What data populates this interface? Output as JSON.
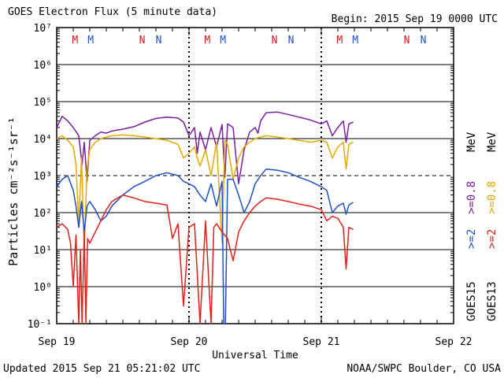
{
  "header": {
    "title": "GOES Electron Flux (5 minute data)",
    "begin": "Begin: 2015 Sep 19 0000 UTC"
  },
  "footer": {
    "updated": "Updated 2015 Sep 21 05:21:02 UTC",
    "source": "NOAA/SWPC Boulder, CO USA"
  },
  "colors": {
    "goes15_gt08": "#7a1fa2",
    "goes15_gt2": "#1f4fc8",
    "goes13_gt08": "#e6a800",
    "goes13_gt2": "#e0201a",
    "marker_M": "#d0201a",
    "marker_N": "#1f4fc8"
  },
  "chart_data": {
    "type": "line",
    "yscale": "log",
    "ylim": [
      0.1,
      10000000
    ],
    "xlim": [
      "2015-09-19 00:00",
      "2015-09-22 00:00"
    ],
    "ylabel": "Particles cm⁻²s⁻¹sr⁻¹",
    "xlabel": "Universal Time",
    "x_ticks": [
      "Sep 19",
      "Sep 20",
      "Sep 21",
      "Sep 22"
    ],
    "y_ticks": [
      "10⁻¹",
      "10⁰",
      "10¹",
      "10²",
      "10³",
      "10⁴",
      "10⁵",
      "10⁶",
      "10⁷"
    ],
    "threshold_dashed": 1000,
    "markers": [
      {
        "label": "M",
        "time": "2015-09-19 03:20",
        "color": "red"
      },
      {
        "label": "M",
        "time": "2015-09-19 06:10",
        "color": "blue"
      },
      {
        "label": "N",
        "time": "2015-09-19 15:30",
        "color": "red"
      },
      {
        "label": "N",
        "time": "2015-09-19 18:30",
        "color": "blue"
      },
      {
        "label": "M",
        "time": "2015-09-20 03:20",
        "color": "red"
      },
      {
        "label": "M",
        "time": "2015-09-20 06:10",
        "color": "blue"
      },
      {
        "label": "N",
        "time": "2015-09-20 15:30",
        "color": "red"
      },
      {
        "label": "N",
        "time": "2015-09-20 18:30",
        "color": "blue"
      },
      {
        "label": "M",
        "time": "2015-09-21 03:20",
        "color": "red"
      },
      {
        "label": "M",
        "time": "2015-09-21 06:10",
        "color": "blue"
      },
      {
        "label": "N",
        "time": "2015-09-21 15:30",
        "color": "red"
      },
      {
        "label": "N",
        "time": "2015-09-21 18:30",
        "color": "blue"
      }
    ],
    "series": [
      {
        "name": "GOES15 >=0.8 MeV",
        "legend": ">=0.8 MeV",
        "color": "#7a1fa2",
        "x_hours": [
          0,
          1,
          2,
          3,
          4,
          4.6,
          5,
          5.5,
          6,
          7,
          8,
          9,
          10,
          12,
          14,
          16,
          18,
          20,
          22,
          23,
          24,
          25,
          25.5,
          26,
          27,
          28,
          29,
          30,
          30.5,
          31,
          32,
          33,
          34,
          35,
          36,
          36.5,
          37,
          38,
          40,
          42,
          44,
          46,
          48,
          49,
          50,
          51,
          52,
          52.5,
          53,
          53.8
        ],
        "y": [
          20000,
          40000,
          30000,
          20000,
          12000,
          2000,
          8000,
          700,
          9000,
          12000,
          15000,
          14000,
          16000,
          18000,
          21000,
          28000,
          35000,
          38000,
          36000,
          28000,
          12000,
          20000,
          4000,
          15000,
          5000,
          20000,
          6000,
          24000,
          900,
          25000,
          20000,
          600,
          5000,
          15000,
          20000,
          14000,
          30000,
          50000,
          52000,
          45000,
          38000,
          32000,
          25000,
          30000,
          12000,
          20000,
          30000,
          8000,
          25000,
          28000
        ]
      },
      {
        "name": "GOES13 >=0.8 MeV",
        "legend": ">=0.8 MeV",
        "color": "#e6a800",
        "x_hours": [
          0,
          1,
          2,
          3,
          3.5,
          4,
          4.5,
          5,
          5.5,
          6,
          7,
          8,
          9,
          10,
          12,
          14,
          16,
          18,
          20,
          22,
          23,
          24,
          25,
          25.5,
          26,
          27,
          28,
          29,
          30,
          30.5,
          31,
          32,
          33,
          34,
          35,
          36,
          37,
          38,
          40,
          42,
          44,
          46,
          48,
          49,
          50,
          51,
          52,
          52.5,
          53,
          53.8
        ],
        "y": [
          10000,
          12000,
          9000,
          6000,
          2000,
          50,
          3000,
          10,
          1500,
          5000,
          8000,
          10000,
          11000,
          12000,
          12500,
          12000,
          11000,
          10000,
          9000,
          7000,
          3000,
          4000,
          6000,
          3000,
          1800,
          5000,
          1000,
          8000,
          15,
          9000,
          7000,
          800,
          3000,
          6000,
          8000,
          10000,
          11000,
          12000,
          11000,
          10000,
          9000,
          8000,
          9000,
          8000,
          3000,
          6000,
          8000,
          1500,
          7000,
          8000
        ]
      },
      {
        "name": "GOES15 >=2 MeV",
        "legend": ">=2 MeV",
        "color": "#1f4fc8",
        "x_hours": [
          0,
          1,
          2,
          3,
          3.5,
          4,
          4.5,
          5,
          5.5,
          6,
          7,
          8,
          9,
          10,
          12,
          14,
          16,
          18,
          20,
          22,
          23,
          24,
          25,
          26,
          27,
          28,
          29,
          30,
          30.3,
          30.6,
          31,
          32,
          33,
          34,
          35,
          36,
          37,
          38,
          40,
          42,
          44,
          46,
          48,
          49,
          50,
          51,
          52,
          52.5,
          53,
          53.8
        ],
        "y": [
          500,
          800,
          1000,
          400,
          150,
          40,
          200,
          30,
          150,
          200,
          120,
          60,
          80,
          150,
          300,
          500,
          700,
          1000,
          1200,
          1000,
          700,
          600,
          500,
          300,
          200,
          600,
          150,
          700,
          0.1,
          0.1,
          800,
          800,
          300,
          100,
          200,
          600,
          1000,
          1500,
          1400,
          1200,
          900,
          700,
          500,
          400,
          100,
          150,
          180,
          90,
          160,
          190
        ]
      },
      {
        "name": "GOES13 >=2 MeV",
        "legend": ">=2 MeV",
        "color": "#e0201a",
        "x_hours": [
          0,
          1,
          2,
          2.5,
          3,
          3.5,
          4,
          4.3,
          4.6,
          5,
          5.3,
          5.6,
          6,
          7,
          8,
          9,
          10,
          12,
          14,
          16,
          18,
          20,
          21,
          22,
          23,
          24,
          25,
          26,
          27,
          28,
          28.5,
          29,
          30,
          31,
          32,
          33,
          34,
          35,
          36,
          37,
          38,
          40,
          42,
          44,
          46,
          48,
          49,
          50,
          51,
          52,
          52.5,
          53,
          53.8
        ],
        "y": [
          40,
          50,
          35,
          15,
          1,
          25,
          0.1,
          10,
          0.1,
          30,
          0.1,
          20,
          15,
          30,
          60,
          120,
          200,
          300,
          250,
          200,
          180,
          160,
          20,
          50,
          0.3,
          40,
          50,
          0.1,
          60,
          0.1,
          40,
          50,
          30,
          20,
          5,
          30,
          60,
          100,
          150,
          200,
          250,
          230,
          200,
          170,
          150,
          120,
          60,
          80,
          70,
          40,
          3,
          40,
          35
        ]
      }
    ]
  },
  "legend_labels": {
    "goes15": "GOES15",
    "goes13": "GOES13",
    "gt2": ">=2",
    "gt08": ">=0.8",
    "mev": "MeV"
  }
}
